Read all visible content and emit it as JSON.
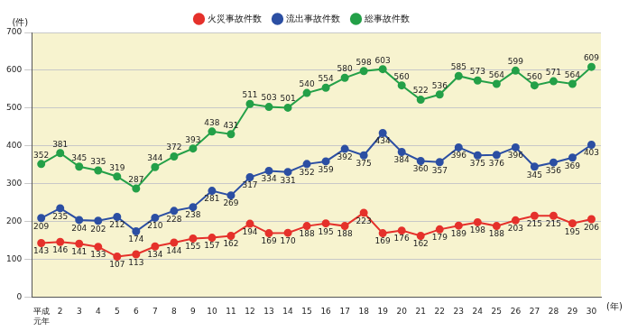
{
  "chart_data": {
    "type": "line",
    "y_label": "(件)",
    "x_label": "(年)",
    "categories": [
      "平成\n元年",
      "2",
      "3",
      "4",
      "5",
      "6",
      "7",
      "8",
      "9",
      "10",
      "11",
      "12",
      "13",
      "14",
      "15",
      "16",
      "17",
      "18",
      "19",
      "20",
      "21",
      "22",
      "23",
      "24",
      "25",
      "26",
      "27",
      "28",
      "29",
      "30"
    ],
    "series": [
      {
        "name": "火災事故件数",
        "color": "#e5312b",
        "marker": "circle",
        "values": [
          143,
          146,
          141,
          133,
          107,
          113,
          134,
          144,
          155,
          157,
          162,
          194,
          169,
          170,
          188,
          195,
          188,
          223,
          169,
          176,
          162,
          179,
          189,
          198,
          188,
          203,
          215,
          215,
          195,
          206
        ]
      },
      {
        "name": "流出事故件数",
        "color": "#2c4fa3",
        "marker": "circle",
        "values": [
          209,
          235,
          204,
          202,
          212,
          174,
          210,
          228,
          238,
          281,
          269,
          317,
          334,
          331,
          352,
          359,
          392,
          375,
          434,
          384,
          360,
          357,
          396,
          375,
          376,
          396,
          345,
          356,
          369,
          403
        ]
      },
      {
        "name": "総事故件数",
        "color": "#24a048",
        "marker": "circle",
        "values": [
          352,
          381,
          345,
          335,
          319,
          287,
          344,
          372,
          393,
          438,
          431,
          511,
          503,
          501,
          540,
          554,
          580,
          598,
          603,
          560,
          522,
          536,
          585,
          573,
          564,
          599,
          560,
          571,
          564,
          609
        ]
      }
    ],
    "ylim": [
      0,
      700
    ],
    "yticks": [
      0,
      100,
      200,
      300,
      400,
      500,
      600,
      700
    ],
    "grid": true,
    "legend": "top",
    "data_labels": true
  }
}
